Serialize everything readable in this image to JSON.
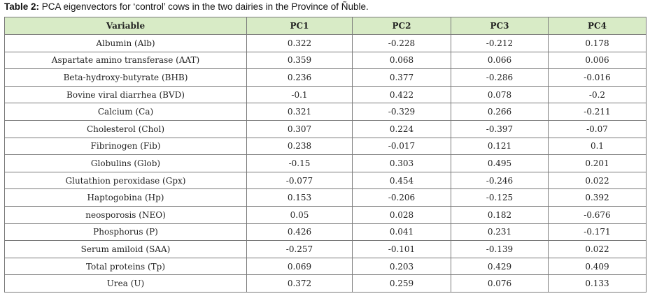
{
  "caption": {
    "lead": "Table 2:",
    "text": " PCA eigenvectors for ‘control’ cows in the two dairies in the Province of Ñuble."
  },
  "table": {
    "headers": [
      "Variable",
      "PC1",
      "PC2",
      "PC3",
      "PC4"
    ],
    "rows": [
      [
        "Albumin (Alb)",
        "0.322",
        "-0.228",
        "-0.212",
        "0.178"
      ],
      [
        "Aspartate amino transferase (AAT)",
        "0.359",
        "0.068",
        "0.066",
        "0.006"
      ],
      [
        "Beta-hydroxy-butyrate (BHB)",
        "0.236",
        "0.377",
        "-0.286",
        "-0.016"
      ],
      [
        "Bovine viral diarrhea (BVD)",
        "-0.1",
        "0.422",
        "0.078",
        "-0.2"
      ],
      [
        "Calcium (Ca)",
        "0.321",
        "-0.329",
        "0.266",
        "-0.211"
      ],
      [
        "Cholesterol (Chol)",
        "0.307",
        "0.224",
        "-0.397",
        "-0.07"
      ],
      [
        "Fibrinogen (Fib)",
        "0.238",
        "-0.017",
        "0.121",
        "0.1"
      ],
      [
        "Globulins (Glob)",
        "-0.15",
        "0.303",
        "0.495",
        "0.201"
      ],
      [
        "Glutathion peroxidase (Gpx)",
        "-0.077",
        "0.454",
        "-0.246",
        "0.022"
      ],
      [
        "Haptogobina (Hp)",
        "0.153",
        "-0.206",
        "-0.125",
        "0.392"
      ],
      [
        "neosporosis (NEO)",
        "0.05",
        "0.028",
        "0.182",
        "-0.676"
      ],
      [
        "Phosphorus (P)",
        "0.426",
        "0.041",
        "0.231",
        "-0.171"
      ],
      [
        "Serum amiloid (SAA)",
        "-0.257",
        "-0.101",
        "-0.139",
        "0.022"
      ],
      [
        "Total proteins (Tp)",
        "0.069",
        "0.203",
        "0.429",
        "0.409"
      ],
      [
        "Urea (U)",
        "0.372",
        "0.259",
        "0.076",
        "0.133"
      ]
    ]
  }
}
